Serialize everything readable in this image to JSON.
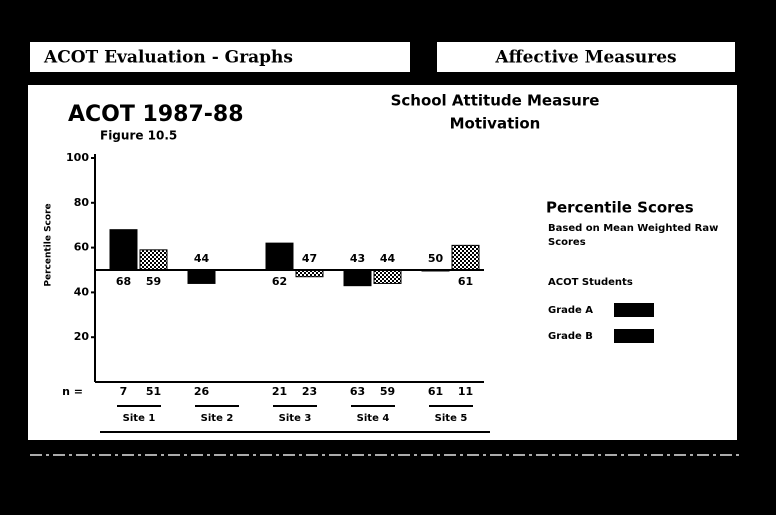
{
  "header": {
    "left": "ACOT Evaluation - Graphs",
    "right": "Affective Measures"
  },
  "chart_data": {
    "type": "bar",
    "title": "School Attitude Measure",
    "subtitle": "Motivation",
    "heading": "ACOT 1987-88",
    "figure": "Figure 10.5",
    "y_label": "Percentile Score",
    "categories": [
      "Site 1",
      "Site 2",
      "Site 3",
      "Site 4",
      "Site 5"
    ],
    "baseline": 50,
    "ylim": [
      0,
      100
    ],
    "yticks": [
      20,
      40,
      60,
      80,
      100
    ],
    "n_label": "n =",
    "legend": {
      "title": "Percentile Scores",
      "note": "Based on Mean Weighted Raw Scores",
      "group": "ACOT Students"
    },
    "series": [
      {
        "name": "Grade A",
        "color": "#000000",
        "pattern": "solid",
        "values": [
          68,
          44,
          62,
          43,
          50
        ],
        "n": [
          7,
          26,
          21,
          63,
          61
        ]
      },
      {
        "name": "Grade B",
        "color": "#000000",
        "pattern": "checkered",
        "values": [
          59,
          null,
          47,
          44,
          61
        ],
        "n": [
          51,
          null,
          23,
          59,
          11
        ]
      }
    ]
  }
}
